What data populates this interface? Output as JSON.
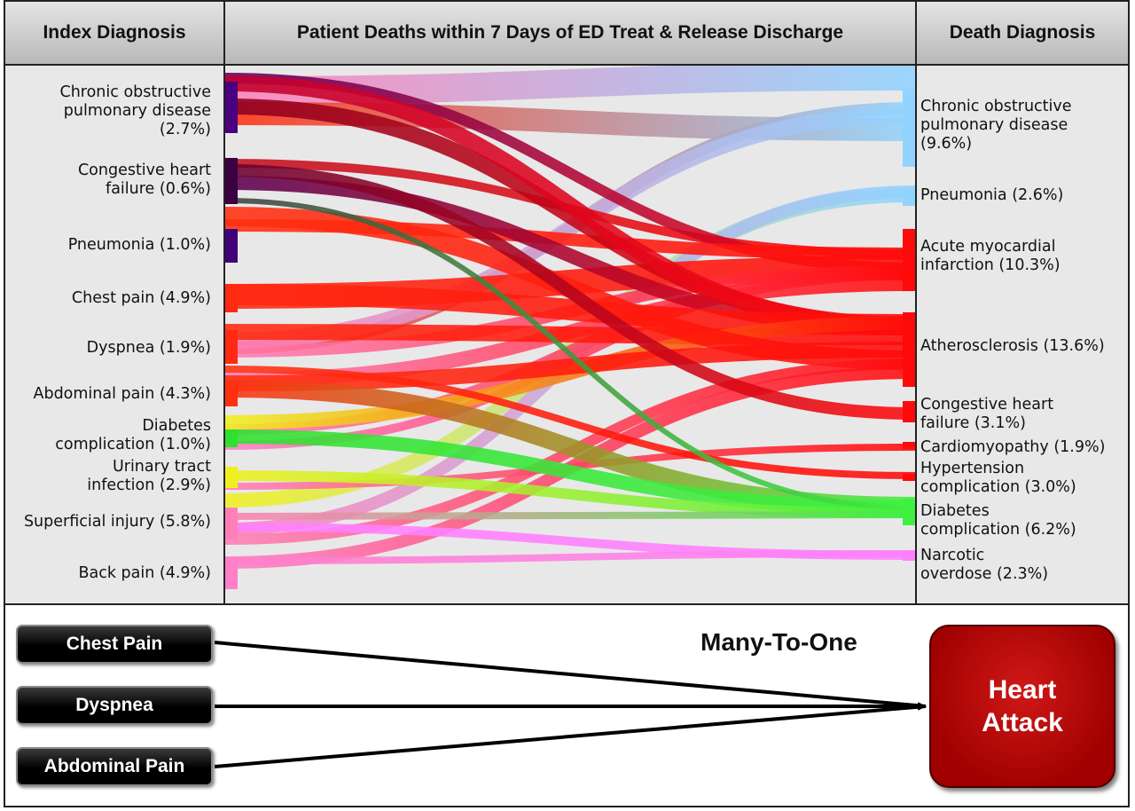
{
  "headers": {
    "index": "Index Diagnosis",
    "middle": "Patient Deaths within 7 Days of ED Treat & Release Discharge",
    "death": "Death Diagnosis"
  },
  "index_diagnoses": [
    {
      "lines": [
        "Chronic obstructive",
        "pulmonary disease",
        "(2.7%)"
      ],
      "color": "#4a0080"
    },
    {
      "lines": [
        "Congestive heart",
        "failure (0.6%)"
      ],
      "color": "#3a0040"
    },
    {
      "lines": [
        "Pneumonia (1.0%)"
      ],
      "color": "#400078"
    },
    {
      "lines": [
        "Chest pain (4.9%)"
      ],
      "color": "#ff2a10"
    },
    {
      "lines": [
        "Dyspnea (1.9%)"
      ],
      "color": "#ff2a10"
    },
    {
      "lines": [
        "Abdominal pain (4.3%)"
      ],
      "color": "#ff3010"
    },
    {
      "lines": [
        "Diabetes",
        "complication (1.0%)"
      ],
      "color": "#30e030"
    },
    {
      "lines": [
        "Urinary tract",
        "infection (2.9%)"
      ],
      "color": "#f0f020"
    },
    {
      "lines": [
        "Superficial injury (5.8%)"
      ],
      "color": "#ff80b8"
    },
    {
      "lines": [
        "Back pain (4.9%)"
      ],
      "color": "#ff80c8"
    }
  ],
  "death_diagnoses": [
    {
      "lines": [
        "Chronic obstructive",
        "pulmonary disease",
        "(9.6%)"
      ],
      "color": "#90d4ff"
    },
    {
      "lines": [
        "Pneumonia (2.6%)"
      ],
      "color": "#90d4ff"
    },
    {
      "lines": [
        "Acute myocardial",
        "infarction (10.3%)"
      ],
      "color": "#ff0a0a"
    },
    {
      "lines": [
        "Atherosclerosis (13.6%)"
      ],
      "color": "#ff0a0a"
    },
    {
      "lines": [
        "Congestive heart",
        "failure (3.1%)"
      ],
      "color": "#ff0a0a"
    },
    {
      "lines": [
        "Cardiomyopathy (1.9%)"
      ],
      "color": "#ff0a0a"
    },
    {
      "lines": [
        "Hypertension",
        "complication (3.0%)"
      ],
      "color": "#ff0a0a"
    },
    {
      "lines": [
        "Diabetes",
        "complication (6.2%)"
      ],
      "color": "#40f040"
    },
    {
      "lines": [
        "Narcotic",
        "overdose (2.3%)"
      ],
      "color": "#ff80ff"
    }
  ],
  "many_to_one": {
    "title": "Many-To-One",
    "sources": [
      "Chest Pain",
      "Dyspnea",
      "Abdominal Pain"
    ],
    "target": "Heart\nAttack"
  }
}
